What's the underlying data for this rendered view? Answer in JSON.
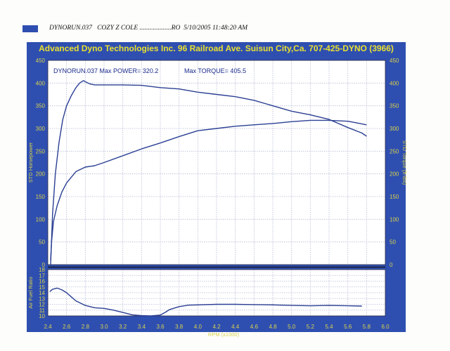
{
  "header": {
    "text": "DYNORUN.037   COZY Z COLE ...................RO  5/10/2005 11:48:20 AM"
  },
  "banner": {
    "text": "Advanced Dyno Technologies Inc. 96 Railroad Ave. Suisun City,Ca. 707-425-DYNO (3966)"
  },
  "colors": {
    "panel": "#2f4fb0",
    "banner_text": "#e8e030",
    "tick_text": "#d8d24a",
    "grid": "#b5bdd6",
    "curve": "#2b3f93",
    "header_swatch": "#2f4fb0"
  },
  "chart_data": [
    {
      "type": "line",
      "annotations": [
        "DYNORUN.037  Max POWER= 320.2",
        "Max TORQUE= 405.5"
      ],
      "xlabel": "RPM (x1000)",
      "ylabel_left": "STD Horsepower",
      "ylabel_right": "STD Torque (ft-lbs)",
      "xlim": [
        2.4,
        6.0
      ],
      "ylim": [
        0,
        450
      ],
      "x_ticks": [
        "2.4",
        "2.6",
        "2.8",
        "3.0",
        "3.2",
        "3.4",
        "3.6",
        "3.8",
        "4.0",
        "4.2",
        "4.4",
        "4.6",
        "4.8",
        "5.0",
        "5.2",
        "5.4",
        "5.6",
        "5.8",
        "6.0"
      ],
      "y_ticks": [
        "0",
        "50",
        "100",
        "150",
        "200",
        "250",
        "300",
        "350",
        "400",
        "450"
      ],
      "grid": true,
      "series": [
        {
          "role": "torque",
          "x": [
            2.43,
            2.45,
            2.48,
            2.52,
            2.56,
            2.6,
            2.65,
            2.7,
            2.74,
            2.78,
            2.8,
            2.85,
            2.9,
            3.0,
            3.2,
            3.4,
            3.6,
            3.8,
            4.0,
            4.2,
            4.4,
            4.6,
            4.8,
            5.0,
            5.2,
            5.4,
            5.6,
            5.75,
            5.8
          ],
          "y": [
            0,
            110,
            200,
            270,
            320,
            350,
            372,
            390,
            400,
            405.5,
            403,
            398,
            396,
            396,
            396,
            395,
            390,
            387,
            380,
            375,
            370,
            362,
            350,
            338,
            330,
            320,
            302,
            290,
            283
          ]
        },
        {
          "role": "power",
          "x": [
            2.43,
            2.44,
            2.46,
            2.5,
            2.55,
            2.6,
            2.7,
            2.8,
            2.9,
            3.0,
            3.2,
            3.4,
            3.6,
            3.8,
            4.0,
            4.2,
            4.4,
            4.6,
            4.8,
            5.0,
            5.2,
            5.4,
            5.6,
            5.7,
            5.8
          ],
          "y": [
            10,
            50,
            95,
            130,
            160,
            180,
            205,
            215,
            218,
            225,
            240,
            255,
            268,
            282,
            295,
            300,
            305,
            308,
            311,
            315,
            318,
            318,
            316,
            312,
            308
          ]
        }
      ]
    },
    {
      "type": "line",
      "xlabel": "RPM (x1000)",
      "ylabel": "Air Fuel Ratio",
      "xlim": [
        2.4,
        6.0
      ],
      "ylim": [
        10,
        18
      ],
      "y_ticks": [
        "10",
        "11",
        "12",
        "13",
        "14",
        "15",
        "16",
        "17",
        "18"
      ],
      "grid": true,
      "series": [
        {
          "role": "air-fuel",
          "x": [
            2.42,
            2.45,
            2.5,
            2.55,
            2.6,
            2.65,
            2.7,
            2.8,
            2.9,
            3.0,
            3.1,
            3.2,
            3.3,
            3.4,
            3.5,
            3.6,
            3.65,
            3.7,
            3.8,
            3.9,
            4.0,
            4.2,
            4.4,
            4.6,
            4.8,
            5.0,
            5.2,
            5.4,
            5.6,
            5.75
          ],
          "y": [
            14.2,
            14.6,
            14.8,
            14.5,
            14.0,
            13.3,
            12.6,
            11.8,
            11.4,
            11.3,
            11.0,
            10.6,
            10.2,
            10.05,
            10.0,
            10.15,
            10.6,
            11.1,
            11.6,
            11.85,
            11.9,
            12.0,
            12.0,
            11.95,
            11.9,
            11.8,
            11.75,
            11.8,
            11.75,
            11.7
          ]
        }
      ]
    }
  ]
}
